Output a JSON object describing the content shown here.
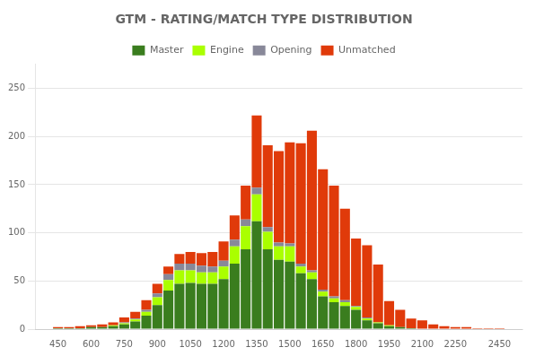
{
  "chart_data": {
    "type": "bar",
    "title": "GTM - RATING/MATCH TYPE DISTRIBUTION",
    "stacked": true,
    "grid": true,
    "legend": "top",
    "x": [
      450,
      500,
      550,
      600,
      650,
      700,
      750,
      800,
      850,
      900,
      950,
      1000,
      1050,
      1100,
      1150,
      1200,
      1250,
      1300,
      1350,
      1400,
      1450,
      1500,
      1550,
      1600,
      1650,
      1700,
      1750,
      1800,
      1850,
      1900,
      1950,
      2000,
      2050,
      2100,
      2150,
      2200,
      2250,
      2300,
      2350,
      2400,
      2450
    ],
    "xlim": [
      425,
      2475
    ],
    "xticks": [
      450,
      600,
      750,
      900,
      1050,
      1200,
      1350,
      1500,
      1650,
      1800,
      1950,
      2100,
      2250,
      2450
    ],
    "ylim": [
      0,
      275
    ],
    "yticks": [
      0,
      50,
      100,
      150,
      200,
      250
    ],
    "series": [
      {
        "name": "Master",
        "color": "#3a7d1e",
        "values": [
          1,
          1,
          1,
          2,
          2,
          3,
          5,
          8,
          14,
          25,
          40,
          47,
          48,
          47,
          47,
          52,
          68,
          83,
          112,
          83,
          72,
          70,
          58,
          52,
          34,
          28,
          24,
          20,
          9,
          6,
          3,
          2,
          1,
          0,
          0,
          0,
          0,
          0,
          0,
          0,
          0
        ]
      },
      {
        "name": "Engine",
        "color": "#aaff00",
        "values": [
          0,
          0,
          0,
          0,
          0,
          1,
          1,
          2,
          4,
          8,
          11,
          14,
          13,
          12,
          12,
          13,
          18,
          24,
          28,
          18,
          14,
          16,
          7,
          7,
          5,
          4,
          4,
          3,
          2,
          1,
          1,
          0,
          0,
          0,
          0,
          0,
          0,
          0,
          0,
          0,
          0
        ]
      },
      {
        "name": "Opening",
        "color": "#888899",
        "values": [
          0,
          0,
          0,
          0,
          0,
          0,
          1,
          1,
          2,
          4,
          6,
          7,
          7,
          7,
          6,
          6,
          7,
          7,
          7,
          5,
          4,
          3,
          3,
          2,
          2,
          2,
          2,
          1,
          1,
          0,
          0,
          0,
          0,
          0,
          0,
          0,
          0,
          0,
          0,
          0,
          0
        ]
      },
      {
        "name": "Unmatched",
        "color": "#e03a0a",
        "values": [
          1,
          1,
          2,
          2,
          3,
          3,
          5,
          7,
          10,
          10,
          8,
          10,
          12,
          13,
          15,
          20,
          25,
          35,
          75,
          85,
          95,
          105,
          125,
          145,
          125,
          115,
          95,
          70,
          75,
          60,
          25,
          18,
          10,
          9,
          5,
          3,
          2,
          2,
          1,
          1,
          1
        ]
      }
    ]
  }
}
